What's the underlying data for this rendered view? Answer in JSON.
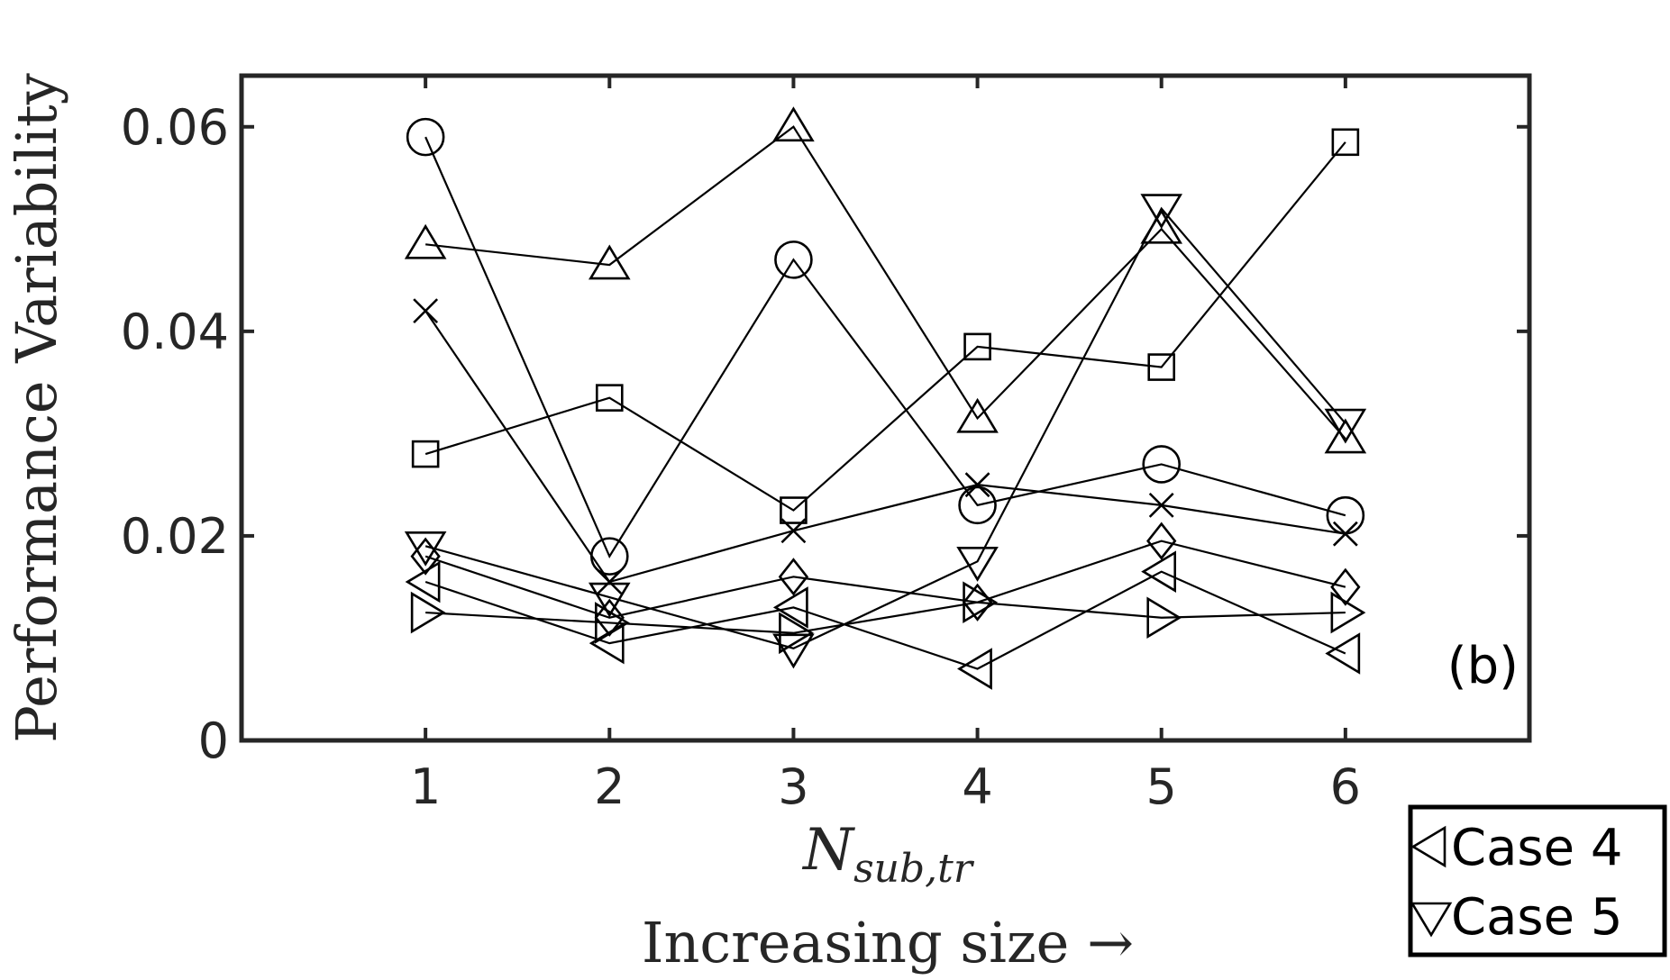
{
  "chart_data": {
    "type": "line",
    "annotation": "(b)",
    "xlabel_main": "N",
    "xlabel_sub": "sub,tr",
    "xlabel_line2": "Increasing size →",
    "ylabel": "Performance Variability",
    "x": [
      1,
      2,
      3,
      4,
      5,
      6
    ],
    "xlim": [
      0,
      7
    ],
    "ylim": [
      0,
      0.065
    ],
    "xticks": [
      1,
      2,
      3,
      4,
      5,
      6
    ],
    "xtick_labels": [
      "1",
      "2",
      "3",
      "4",
      "5",
      "6"
    ],
    "yticks": [
      0,
      0.02,
      0.04,
      0.06
    ],
    "ytick_labels": [
      "0",
      "0.02",
      "0.04",
      "0.06"
    ],
    "series": [
      {
        "name": "circle series",
        "marker": "circle",
        "values": [
          0.059,
          0.018,
          0.047,
          0.023,
          0.027,
          0.022
        ]
      },
      {
        "name": "triangle-up series",
        "marker": "triangle-up",
        "values": [
          0.0485,
          0.0465,
          0.06,
          0.0315,
          0.05,
          0.0295
        ]
      },
      {
        "name": "cross series",
        "marker": "x",
        "values": [
          0.042,
          0.0155,
          0.0205,
          0.025,
          0.023,
          0.0202
        ]
      },
      {
        "name": "square series",
        "marker": "square",
        "values": [
          0.028,
          0.0335,
          0.0225,
          0.0385,
          0.0365,
          0.0585
        ]
      },
      {
        "name": "diamond series",
        "marker": "diamond",
        "values": [
          0.018,
          0.012,
          0.016,
          0.0135,
          0.0195,
          0.015
        ]
      },
      {
        "name": "triangle-right series",
        "marker": "triangle-right",
        "values": [
          0.0125,
          0.0115,
          0.0105,
          0.0135,
          0.012,
          0.0125
        ]
      },
      {
        "name": "Case 4",
        "marker": "triangle-left",
        "values": [
          0.0155,
          0.0095,
          0.013,
          0.007,
          0.0165,
          0.0085
        ]
      },
      {
        "name": "Case 5",
        "marker": "triangle-down",
        "values": [
          0.019,
          0.014,
          0.009,
          0.0175,
          0.052,
          0.031
        ]
      }
    ],
    "legend": [
      {
        "label": "Case 4",
        "marker": "triangle-left"
      },
      {
        "label": "Case 5",
        "marker": "triangle-down"
      }
    ],
    "legend_position": "bottom-right outside"
  }
}
